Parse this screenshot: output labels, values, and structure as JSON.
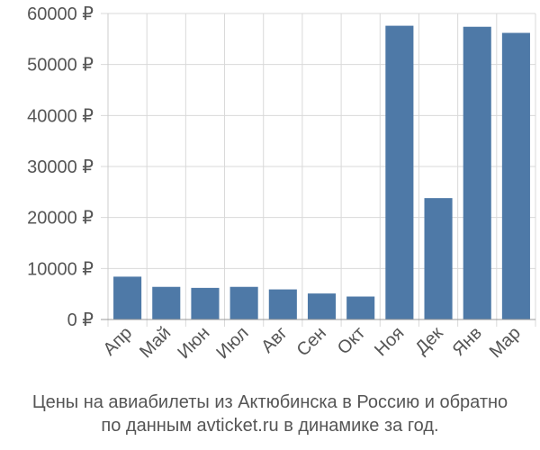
{
  "chart_data": {
    "type": "bar",
    "categories": [
      "Апр",
      "Май",
      "Июн",
      "Июл",
      "Авг",
      "Сен",
      "Окт",
      "Ноя",
      "Дек",
      "Янв",
      "Мар"
    ],
    "values": [
      8400,
      6400,
      6200,
      6400,
      5900,
      5100,
      4500,
      57600,
      23800,
      57400,
      56200
    ],
    "ylim": [
      0,
      60000
    ],
    "yticks": [
      0,
      10000,
      20000,
      30000,
      40000,
      50000,
      60000
    ],
    "ytick_labels": [
      "0 ₽",
      "10000 ₽",
      "20000 ₽",
      "30000 ₽",
      "40000 ₽",
      "50000 ₽",
      "60000 ₽"
    ],
    "grid": true,
    "bar_color": "#4e79a7",
    "grid_color": "#d9d9d9",
    "axis_color": "#555555"
  },
  "caption": {
    "line1": "Цены на авиабилеты из Актюбинска в Россию и обратно",
    "line2": "по данным avticket.ru в динамике за год."
  }
}
